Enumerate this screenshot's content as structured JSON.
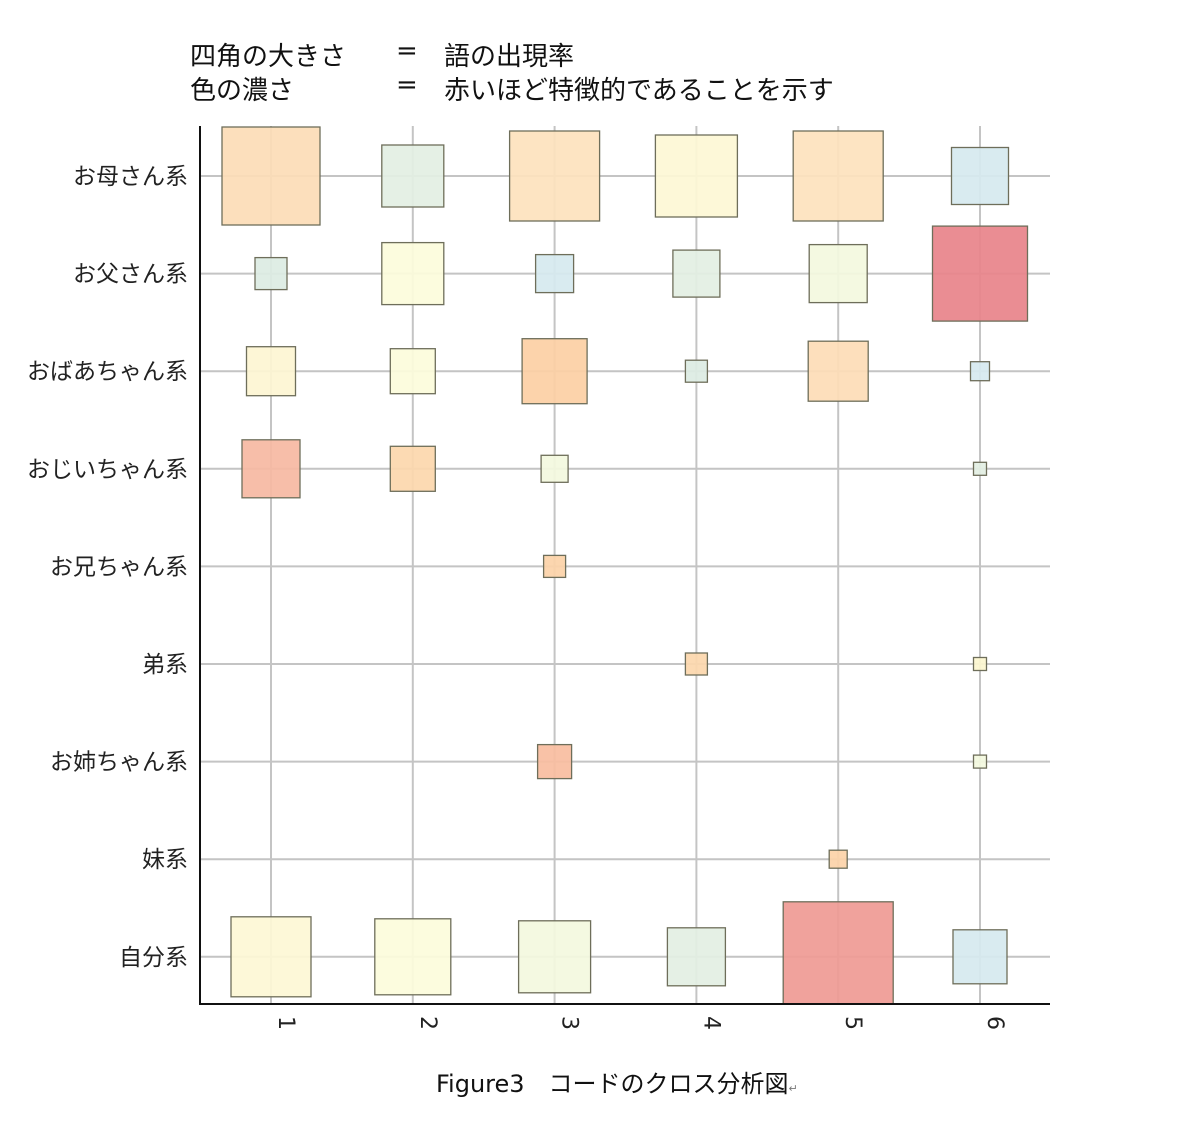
{
  "legend": [
    {
      "key": "四角の大きさ",
      "eq": "=",
      "value": "語の出現率"
    },
    {
      "key": "色の濃さ",
      "eq": "=",
      "value": "赤いほど特徴的であることを示す"
    }
  ],
  "caption": "Figure3　コードのクロス分析図",
  "caption_mark": "↵",
  "chart_data": {
    "type": "heatmap",
    "x_categories": [
      "1",
      "2",
      "3",
      "4",
      "5",
      "6"
    ],
    "y_categories": [
      "お母さん系",
      "お父さん系",
      "おばあちゃん系",
      "おじいちゃん系",
      "お兄ちゃん系",
      "弟系",
      "お姉ちゃん系",
      "妹系",
      "自分系"
    ],
    "size_meaning": "語の出現率",
    "color_meaning": "赤いほど特徴的であることを示す",
    "grid": true,
    "cells": [
      {
        "row": "お母さん系",
        "col": "1",
        "size": 0.98,
        "color": "#fcdcb6"
      },
      {
        "row": "お母さん系",
        "col": "2",
        "size": 0.62,
        "color": "#e3efe3"
      },
      {
        "row": "お母さん系",
        "col": "3",
        "size": 0.9,
        "color": "#fde2bd"
      },
      {
        "row": "お母さん系",
        "col": "4",
        "size": 0.82,
        "color": "#fdf7d5"
      },
      {
        "row": "お母さん系",
        "col": "5",
        "size": 0.9,
        "color": "#fde2bd"
      },
      {
        "row": "お母さん系",
        "col": "6",
        "size": 0.57,
        "color": "#d6e9ef"
      },
      {
        "row": "お父さん系",
        "col": "1",
        "size": 0.32,
        "color": "#dcece3"
      },
      {
        "row": "お父さん系",
        "col": "2",
        "size": 0.62,
        "color": "#fcfcdb"
      },
      {
        "row": "お父さん系",
        "col": "3",
        "size": 0.38,
        "color": "#d6e9ef"
      },
      {
        "row": "お父さん系",
        "col": "4",
        "size": 0.47,
        "color": "#e3efe3"
      },
      {
        "row": "お父さん系",
        "col": "5",
        "size": 0.58,
        "color": "#f3f9de"
      },
      {
        "row": "お父さん系",
        "col": "6",
        "size": 0.95,
        "color": "#e8838a"
      },
      {
        "row": "おばあちゃん系",
        "col": "1",
        "size": 0.49,
        "color": "#fdf5d3"
      },
      {
        "row": "おばあちゃん系",
        "col": "2",
        "size": 0.45,
        "color": "#fcfcdb"
      },
      {
        "row": "おばあちゃん系",
        "col": "3",
        "size": 0.65,
        "color": "#fccfa4"
      },
      {
        "row": "おばあちゃん系",
        "col": "4",
        "size": 0.22,
        "color": "#dcece3"
      },
      {
        "row": "おばあちゃん系",
        "col": "5",
        "size": 0.6,
        "color": "#fddcb6"
      },
      {
        "row": "おばあちゃん系",
        "col": "6",
        "size": 0.19,
        "color": "#d6e9ef"
      },
      {
        "row": "おじいちゃん系",
        "col": "1",
        "size": 0.58,
        "color": "#f6b8a2"
      },
      {
        "row": "おじいちゃん系",
        "col": "2",
        "size": 0.45,
        "color": "#fcd7ad"
      },
      {
        "row": "おじいちゃん系",
        "col": "3",
        "size": 0.27,
        "color": "#f3f9de"
      },
      {
        "row": "おじいちゃん系",
        "col": "6",
        "size": 0.13,
        "color": "#e3efe3"
      },
      {
        "row": "お兄ちゃん系",
        "col": "3",
        "size": 0.22,
        "color": "#fcd2a8"
      },
      {
        "row": "弟系",
        "col": "4",
        "size": 0.22,
        "color": "#fcd7ad"
      },
      {
        "row": "弟系",
        "col": "6",
        "size": 0.13,
        "color": "#fcf6cf"
      },
      {
        "row": "お姉ちゃん系",
        "col": "3",
        "size": 0.34,
        "color": "#f8bda0"
      },
      {
        "row": "お姉ちゃん系",
        "col": "6",
        "size": 0.13,
        "color": "#f3f9de"
      },
      {
        "row": "妹系",
        "col": "5",
        "size": 0.18,
        "color": "#fcd2a8"
      },
      {
        "row": "自分系",
        "col": "1",
        "size": 0.8,
        "color": "#fdf7d5"
      },
      {
        "row": "自分系",
        "col": "2",
        "size": 0.76,
        "color": "#fcfcdb"
      },
      {
        "row": "自分系",
        "col": "3",
        "size": 0.72,
        "color": "#f3f9de"
      },
      {
        "row": "自分系",
        "col": "4",
        "size": 0.58,
        "color": "#e3efe3"
      },
      {
        "row": "自分系",
        "col": "5",
        "size": 1.1,
        "color": "#ef9a94"
      },
      {
        "row": "自分系",
        "col": "6",
        "size": 0.54,
        "color": "#d6e9ef"
      }
    ]
  }
}
